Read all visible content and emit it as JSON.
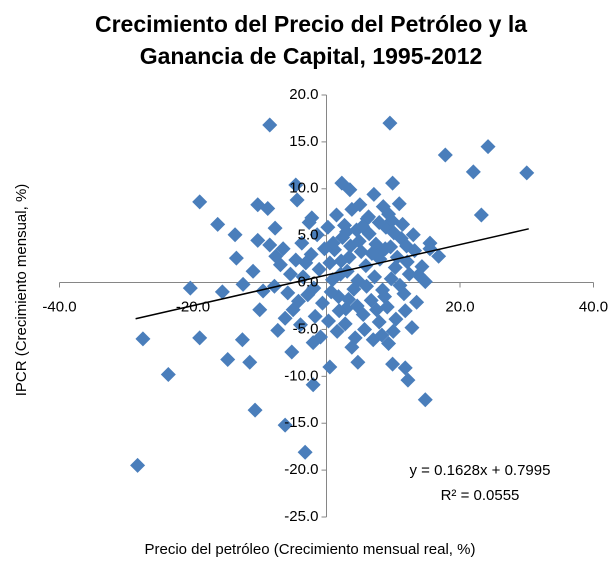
{
  "chart_data": {
    "type": "scatter",
    "title": "Crecimiento del Precio del Petróleo y la Ganancia de Capital, 1995-2012",
    "x_label": "Precio del petróleo (Crecimiento mensual real, %)",
    "y_label": "IPCR (Crecimiento mensual, %)",
    "color": "#4a7ebb",
    "xlim": [
      -40,
      40
    ],
    "ylim": [
      -25,
      20
    ],
    "xticks": [
      {
        "value": -40,
        "label": "-40.0"
      },
      {
        "value": -20,
        "label": "-20.0"
      },
      {
        "value": 20,
        "label": "20.0"
      },
      {
        "value": 40,
        "label": "40.0"
      }
    ],
    "yticks": [
      {
        "value": -25,
        "label": "-25.0"
      },
      {
        "value": -20,
        "label": "-20.0"
      },
      {
        "value": -15,
        "label": "-15.0"
      },
      {
        "value": -10,
        "label": "-10.0"
      },
      {
        "value": -5,
        "label": "-5.0"
      },
      {
        "value": 0,
        "label": "0.0"
      },
      {
        "value": 5,
        "label": "5.0"
      },
      {
        "value": 10,
        "label": "10.0"
      },
      {
        "value": 15,
        "label": "15.0"
      },
      {
        "value": 20,
        "label": "20.0"
      }
    ],
    "x": [
      -8.5,
      9.5,
      24.2,
      30.0,
      17.8,
      22.0,
      23.2,
      -19.0,
      -27.5,
      -28.3,
      -23.7,
      -19.0,
      -14.8,
      -10.7,
      -6.2,
      -3.2,
      14.8,
      -2.0,
      -16.3,
      -13.7,
      -20.4,
      -15.6,
      -13.5,
      -11.5,
      9.9,
      2.3,
      3.5,
      -4.6,
      15.5,
      16.8,
      14.8,
      11.8,
      12.2,
      9.9,
      9.3,
      3.8,
      4.7,
      0.5,
      -5.2,
      -7.3,
      -10.0,
      -12.6,
      -10.3,
      -8.8,
      -7.7,
      -10.3,
      -4.4,
      -2.2,
      0.5,
      1.2,
      2.4,
      3.1,
      4.5,
      5.2,
      6.1,
      7.4,
      8.0,
      8.9,
      9.6,
      10.3,
      11.2,
      12.1,
      13.0,
      13.8,
      1.8,
      2.9,
      4.1,
      5.5,
      6.7,
      7.9,
      9.1,
      10.4,
      11.6,
      12.8,
      13.5,
      -1.1,
      -2.3,
      -3.5,
      -4.6,
      -5.8,
      -6.9,
      -7.8,
      -0.6,
      -1.7,
      -2.8,
      -3.9,
      -5.0,
      -6.2,
      0.2,
      1.5,
      2.7,
      3.8,
      5.0,
      6.3,
      7.1,
      8.5,
      9.8,
      10.9,
      -1.4,
      -2.6,
      -3.7,
      0.9,
      2.1,
      3.4,
      4.7,
      5.9,
      7.2,
      8.4,
      9.7,
      11.0,
      12.4,
      0.3,
      1.6,
      2.8,
      4.3,
      5.7,
      7.0,
      8.3,
      -0.9,
      -2.0,
      3.6,
      4.9,
      6.4,
      7.7,
      8.8,
      10.1,
      11.4,
      1.0,
      2.2,
      3.0,
      5.4,
      6.8,
      7.9,
      9.3,
      10.6,
      12.0,
      13.2,
      14.3,
      -0.3,
      -1.9,
      -3.1,
      -4.2,
      -5.4,
      -6.5,
      -7.6,
      0.7,
      1.9,
      3.3,
      4.6,
      6.0,
      7.5,
      8.7,
      10.0,
      11.8,
      15.5,
      -8.5,
      -9.5,
      -11.0,
      -12.5
    ],
    "y": [
      16.8,
      17.0,
      14.5,
      11.7,
      13.6,
      11.8,
      7.2,
      8.6,
      -6.0,
      -19.5,
      -9.8,
      -5.9,
      -8.2,
      -13.6,
      -15.2,
      -18.1,
      -12.5,
      -10.9,
      6.2,
      5.1,
      -0.6,
      -1.0,
      2.6,
      -8.5,
      10.6,
      10.6,
      9.9,
      10.4,
      4.2,
      2.8,
      0.1,
      -9.1,
      -10.4,
      -8.7,
      -6.5,
      -6.9,
      -8.5,
      -9.0,
      -7.4,
      -5.1,
      -2.9,
      -6.1,
      8.3,
      7.9,
      5.8,
      4.5,
      8.8,
      6.9,
      2.1,
      3.5,
      4.8,
      1.2,
      5.6,
      3.3,
      6.8,
      4.1,
      2.5,
      5.9,
      3.8,
      1.6,
      4.7,
      2.2,
      5.1,
      0.8,
      -1.5,
      -2.8,
      -0.7,
      -3.4,
      -1.9,
      -4.2,
      -2.6,
      -3.9,
      -1.2,
      -4.8,
      -2.1,
      1.4,
      3.0,
      0.6,
      2.4,
      -1.1,
      1.9,
      -0.4,
      -2.2,
      -3.6,
      -1.3,
      -4.5,
      -2.9,
      -3.8,
      5.9,
      7.2,
      6.1,
      7.8,
      8.3,
      7.0,
      9.4,
      8.1,
      6.6,
      8.4,
      5.1,
      6.4,
      4.2,
      0.3,
      0.9,
      2.7,
      0.2,
      1.8,
      0.6,
      -0.8,
      0.4,
      -0.3,
      0.9,
      -4.1,
      -5.2,
      -4.4,
      -5.9,
      -5.0,
      -6.1,
      -5.6,
      -5.8,
      -6.4,
      3.9,
      4.4,
      5.2,
      2.9,
      3.6,
      5.3,
      6.2,
      4.2,
      2.3,
      5.4,
      6.0,
      3.1,
      6.4,
      7.3,
      2.7,
      3.9,
      3.4,
      1.7,
      3.6,
      -0.6,
      2.1,
      -2.0,
      0.9,
      3.6,
      2.8,
      -1.0,
      -3.0,
      -1.8,
      -2.5,
      -0.4,
      -2.9,
      -1.5,
      -5.2,
      -3.0,
      3.6,
      4.0,
      -0.9,
      1.2,
      -0.2
    ],
    "trendline": {
      "x": [
        -28.6,
        30.3
      ],
      "y": [
        -3.86,
        5.73
      ]
    },
    "trendline_equation": "y = 0.1628x + 0.7995",
    "trendline_r2": "R² = 0.0555"
  }
}
